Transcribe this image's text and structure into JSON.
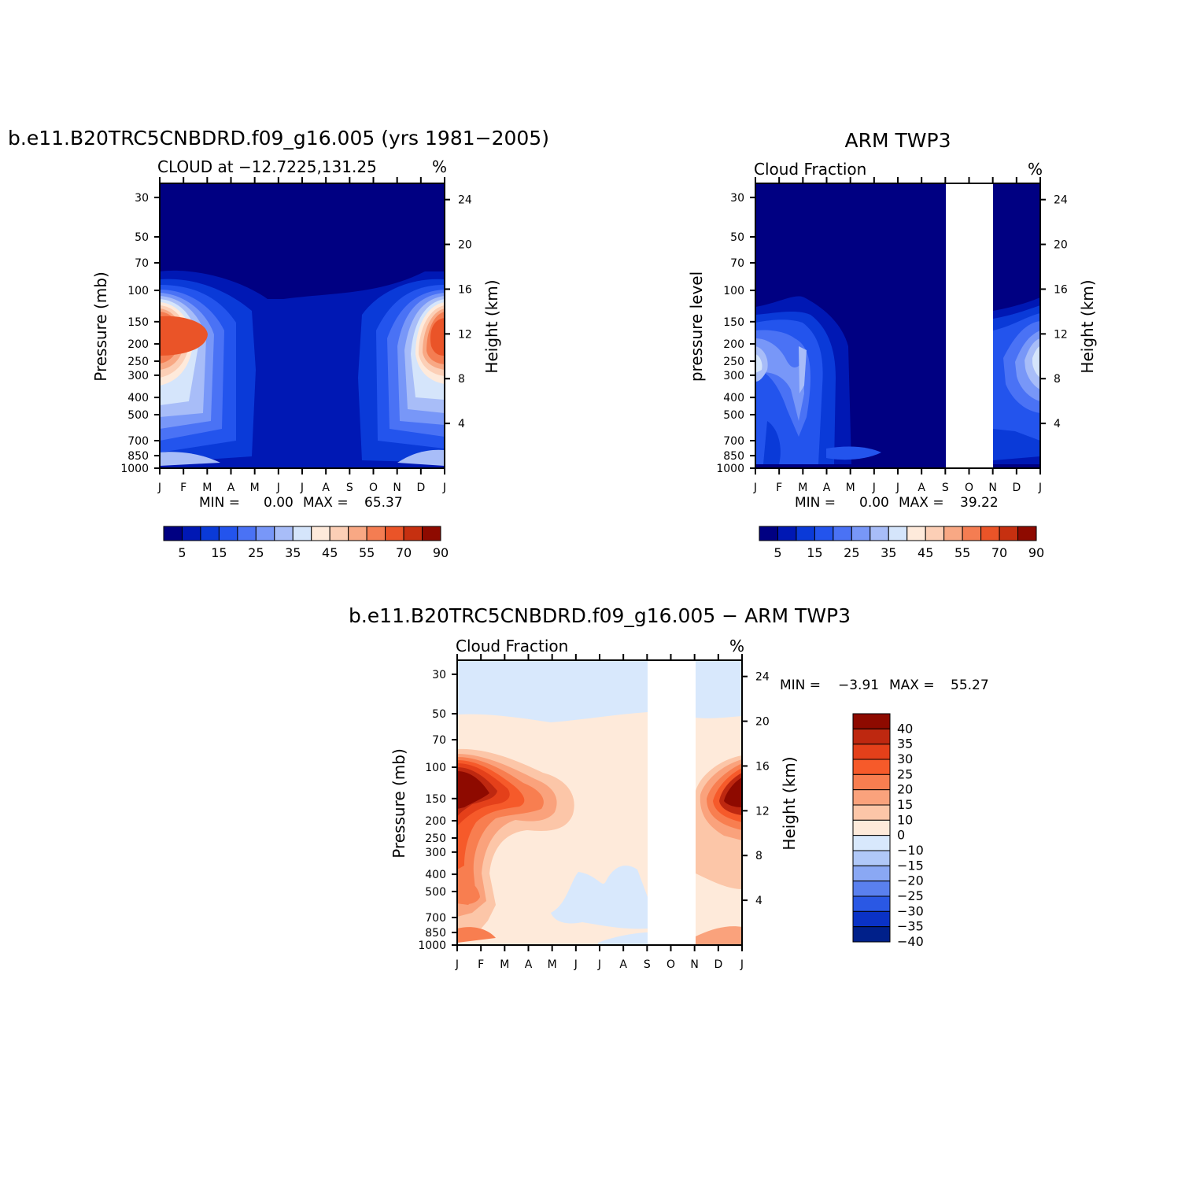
{
  "chart_data": [
    {
      "type": "heatmap",
      "title": "b.e11.B20TRC5CNBDRD.f09_g16.005 (yrs 1981−2005)",
      "subtitle_left": "CLOUD at −12.7225,131.25",
      "subtitle_right": "%",
      "ylabel": "Pressure (mb)",
      "y2label": "Height (km)",
      "x_ticks": [
        "J",
        "F",
        "M",
        "A",
        "M",
        "J",
        "J",
        "A",
        "S",
        "O",
        "N",
        "D",
        "J"
      ],
      "y_ticks": [
        "30",
        "50",
        "70",
        "100",
        "150",
        "200",
        "250",
        "300",
        "400",
        "500",
        "700",
        "850",
        "1000"
      ],
      "y2_ticks": [
        "24",
        "20",
        "16",
        "12",
        "8",
        "4"
      ],
      "stats": {
        "min_label": "MIN =",
        "min": "0.00",
        "max_label": "MAX =",
        "max": "65.37"
      },
      "colorbar": {
        "orientation": "horizontal",
        "labels": [
          "5",
          "15",
          "25",
          "35",
          "45",
          "55",
          "70",
          "90"
        ]
      },
      "contour_levels": [
        5,
        10,
        15,
        20,
        25,
        30,
        35,
        40,
        45,
        50,
        55,
        60,
        70,
        80,
        90
      ]
    },
    {
      "type": "heatmap",
      "title": "ARM TWP3",
      "subtitle_left": "Cloud Fraction",
      "subtitle_right": "%",
      "ylabel": "pressure level",
      "y2label": "Height (km)",
      "x_ticks": [
        "J",
        "F",
        "M",
        "A",
        "M",
        "J",
        "J",
        "A",
        "S",
        "O",
        "N",
        "D",
        "J"
      ],
      "y_ticks": [
        "30",
        "50",
        "70",
        "100",
        "150",
        "200",
        "250",
        "300",
        "400",
        "500",
        "700",
        "850",
        "1000"
      ],
      "y2_ticks": [
        "24",
        "20",
        "16",
        "12",
        "8",
        "4"
      ],
      "stats": {
        "min_label": "MIN =",
        "min": "0.00",
        "max_label": "MAX =",
        "max": "39.22"
      },
      "colorbar": {
        "orientation": "horizontal",
        "labels": [
          "5",
          "15",
          "25",
          "35",
          "45",
          "55",
          "70",
          "90"
        ]
      },
      "missing_months": [
        "S",
        "O"
      ]
    },
    {
      "type": "heatmap",
      "title": "b.e11.B20TRC5CNBDRD.f09_g16.005 − ARM TWP3",
      "subtitle_left": "Cloud Fraction",
      "subtitle_right": "%",
      "ylabel": "Pressure (mb)",
      "y2label": "Height (km)",
      "x_ticks": [
        "J",
        "F",
        "M",
        "A",
        "M",
        "J",
        "J",
        "A",
        "S",
        "O",
        "N",
        "D",
        "J"
      ],
      "y_ticks": [
        "30",
        "50",
        "70",
        "100",
        "150",
        "200",
        "250",
        "300",
        "400",
        "500",
        "700",
        "850",
        "1000"
      ],
      "y2_ticks": [
        "24",
        "20",
        "16",
        "12",
        "8",
        "4"
      ],
      "stats": {
        "min_label": "MIN =",
        "min": "−3.91",
        "max_label": "MAX =",
        "max": "55.27"
      },
      "colorbar": {
        "orientation": "vertical",
        "labels": [
          "40",
          "35",
          "30",
          "25",
          "20",
          "15",
          "10",
          "0",
          "−10",
          "−15",
          "−20",
          "−25",
          "−30",
          "−35",
          "−40"
        ]
      },
      "missing_months": [
        "S",
        "O"
      ]
    }
  ],
  "palettes": {
    "seq": [
      "#000082",
      "#0018b4",
      "#0a3ad8",
      "#2354ed",
      "#4a72f5",
      "#7897f8",
      "#a8bdf8",
      "#d5e5fb",
      "#feeadb",
      "#fccfb6",
      "#f8a884",
      "#f47d52",
      "#ea5428",
      "#c63010",
      "#8e0a00"
    ],
    "diff": [
      "#8e0a00",
      "#be2810",
      "#e4401a",
      "#f65a2a",
      "#f87e50",
      "#faa27c",
      "#fcc6a8",
      "#feeada",
      "#d8e8fc",
      "#b0c8f8",
      "#8aa8f4",
      "#5a80ee",
      "#2a58e4",
      "#0a32c6",
      "#00208a"
    ]
  }
}
